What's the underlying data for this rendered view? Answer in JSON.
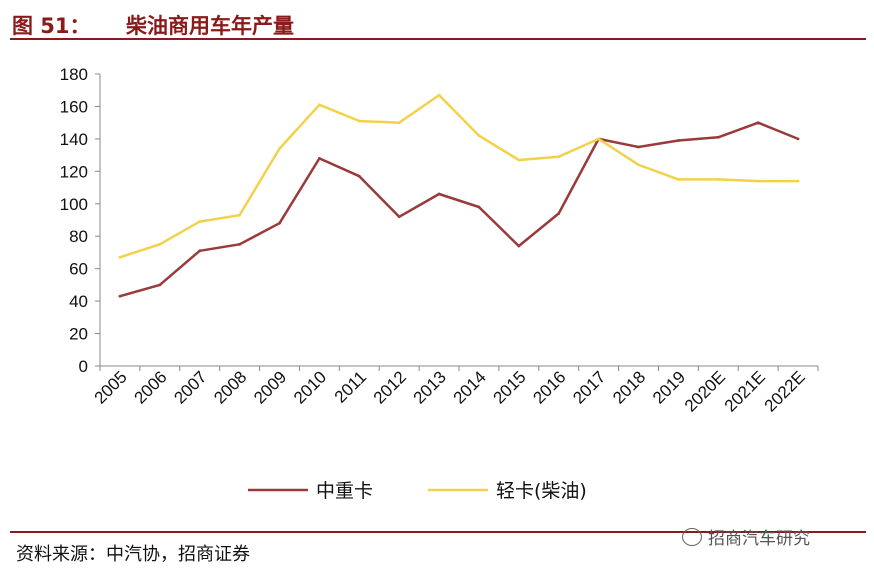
{
  "header": {
    "figure_number": "图 51：",
    "title": "柴油商用车年产量"
  },
  "source": "资料来源：中汽协，招商证券",
  "watermark": "招商汽车研究",
  "chart_data": {
    "type": "line",
    "title": "柴油商用车年产量",
    "xlabel": "",
    "ylabel": "",
    "ylim": [
      0,
      180
    ],
    "yticks": [
      "0",
      "20",
      "40",
      "60",
      "80",
      "100",
      "120",
      "140",
      "160",
      "180"
    ],
    "categories": [
      "2005",
      "2006",
      "2007",
      "2008",
      "2009",
      "2010",
      "2011",
      "2012",
      "2013",
      "2014",
      "2015",
      "2016",
      "2017",
      "2018",
      "2019",
      "2020E",
      "2021E",
      "2022E"
    ],
    "grid": false,
    "legend_position": "bottom",
    "series": [
      {
        "name": "中重卡",
        "color": "#9B3A3A",
        "values": [
          43,
          50,
          71,
          75,
          88,
          128,
          117,
          92,
          106,
          98,
          74,
          94,
          140,
          135,
          139,
          141,
          150,
          140
        ]
      },
      {
        "name": "轻卡(柴油)",
        "color": "#F2D24B",
        "values": [
          67,
          75,
          89,
          93,
          134,
          161,
          151,
          150,
          167,
          142,
          127,
          129,
          140,
          124,
          115,
          115,
          114,
          114
        ]
      }
    ]
  }
}
